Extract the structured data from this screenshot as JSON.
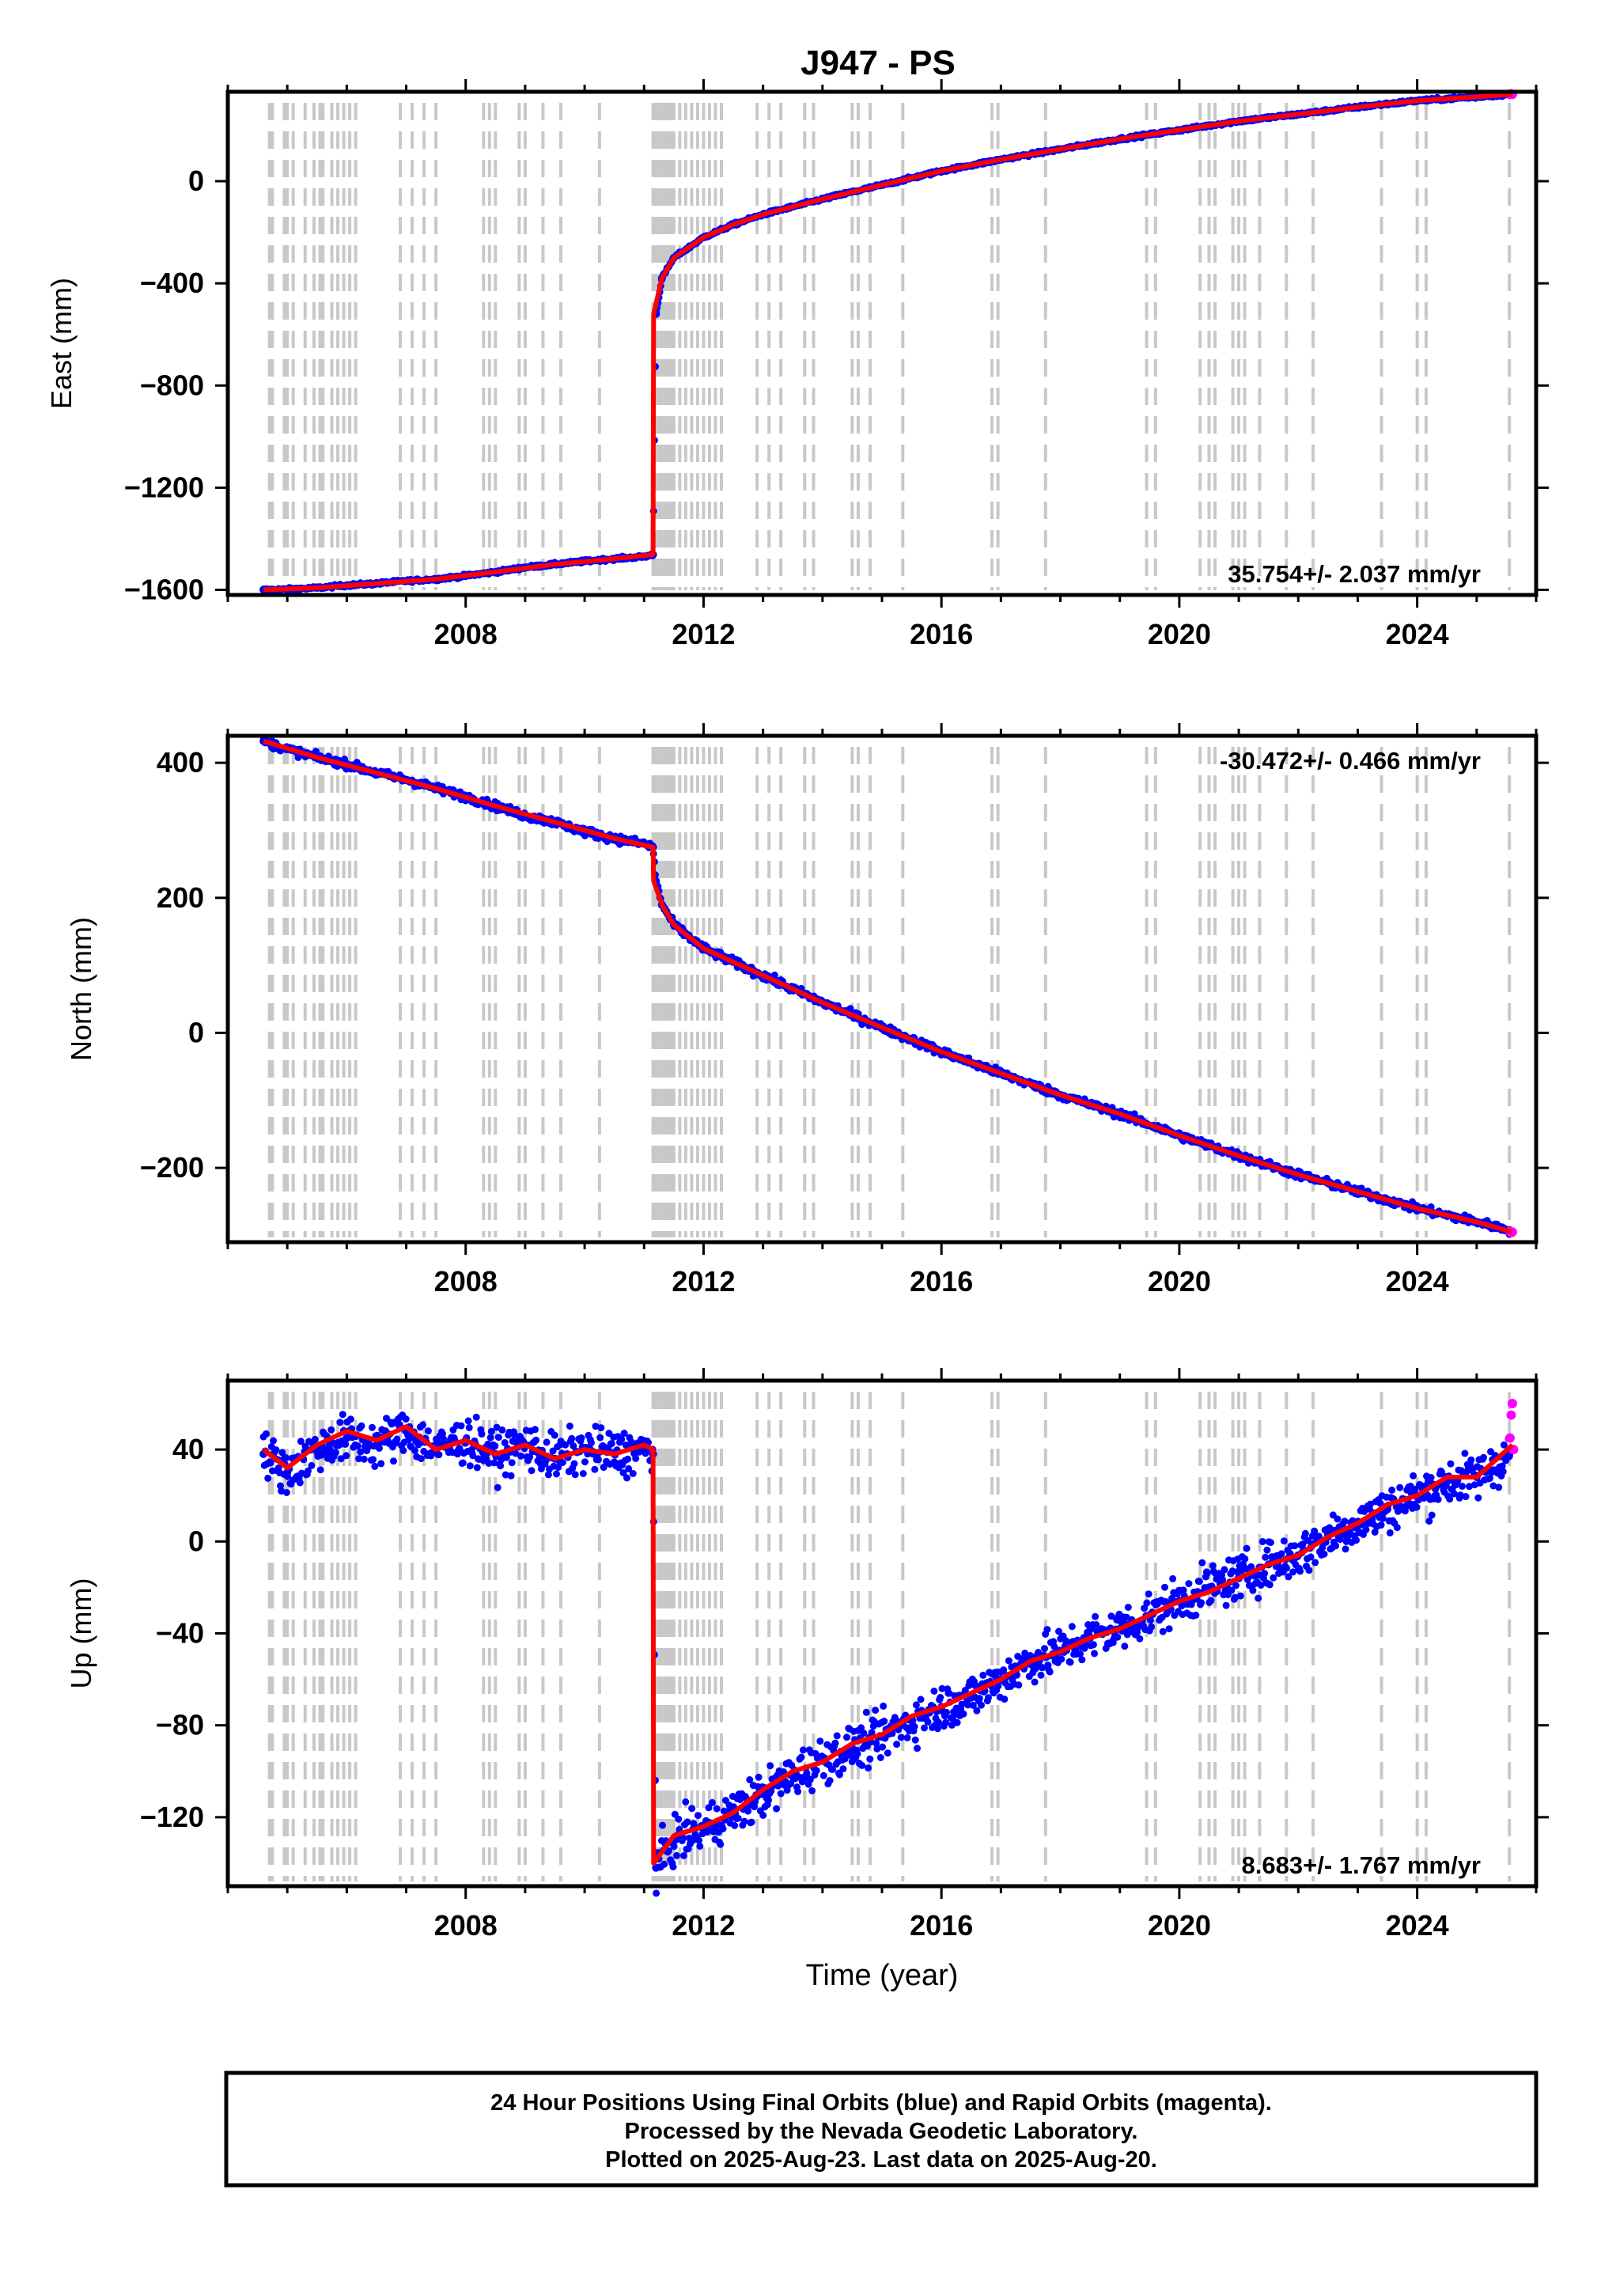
{
  "title": "J947 - PS",
  "colors": {
    "final_points": "#0000ff",
    "rapid_points": "#ff00ff",
    "model": "#ff0000",
    "event_lines": "#c8c8c8",
    "frame": "#000000"
  },
  "footer": {
    "line1": "24 Hour Positions Using Final Orbits (blue) and Rapid Orbits (magenta).",
    "line2": "Processed by the Nevada Geodetic Laboratory.",
    "line3": "Plotted on 2025-Aug-23. Last data on 2025-Aug-20."
  },
  "chart_data": [
    {
      "type": "scatter",
      "component": "East",
      "ylabel": "East (mm)",
      "xlabel": "",
      "xlim": [
        2004.0,
        2026.0
      ],
      "ylim": [
        -1620,
        350
      ],
      "xticks": [
        2008,
        2012,
        2016,
        2020,
        2024
      ],
      "yticks": [
        -1600,
        -1200,
        -800,
        -400,
        0
      ],
      "ytick_labels": [
        "−1600",
        "−1200",
        "−800",
        "−400",
        "0"
      ],
      "rate_label": "35.754+/- 2.037 mm/yr",
      "rate_position": "bottom-right",
      "series": [
        {
          "name": "Final Orbits (blue)",
          "x": [
            2004.6,
            2005.0,
            2005.5,
            2006.0,
            2006.5,
            2007.0,
            2007.5,
            2008.0,
            2008.5,
            2009.0,
            2009.5,
            2010.0,
            2010.5,
            2011.0,
            2011.15,
            2011.2,
            2011.3,
            2011.5,
            2012.0,
            2012.5,
            2013.0,
            2014.0,
            2015.0,
            2016.0,
            2017.0,
            2018.0,
            2019.0,
            2020.0,
            2021.0,
            2022.0,
            2023.0,
            2024.0,
            2025.0,
            2025.55
          ],
          "y": [
            -1600,
            -1598,
            -1592,
            -1582,
            -1575,
            -1565,
            -1558,
            -1545,
            -1530,
            -1512,
            -1500,
            -1488,
            -1478,
            -1470,
            -1462,
            -520,
            -380,
            -300,
            -220,
            -170,
            -130,
            -70,
            -15,
            40,
            85,
            125,
            165,
            200,
            235,
            262,
            290,
            315,
            330,
            340
          ]
        },
        {
          "name": "Rapid Orbits (magenta)",
          "x": [
            2025.56,
            2025.58,
            2025.6
          ],
          "y": [
            340,
            342,
            340
          ]
        },
        {
          "name": "Model",
          "x": [
            2004.6,
            2005.5,
            2006.5,
            2007.5,
            2008.5,
            2009.5,
            2010.5,
            2011.15,
            2011.16,
            2011.3,
            2011.5,
            2012.0,
            2012.5,
            2013.0,
            2014.0,
            2015.0,
            2016.0,
            2017.0,
            2018.0,
            2019.0,
            2020.0,
            2021.0,
            2022.0,
            2023.0,
            2024.0,
            2025.0,
            2025.6
          ],
          "y": [
            -1600,
            -1592,
            -1575,
            -1558,
            -1530,
            -1500,
            -1478,
            -1462,
            -520,
            -380,
            -300,
            -220,
            -170,
            -130,
            -70,
            -15,
            40,
            85,
            125,
            165,
            200,
            235,
            262,
            290,
            315,
            330,
            340
          ]
        }
      ]
    },
    {
      "type": "scatter",
      "component": "North",
      "ylabel": "North (mm)",
      "xlabel": "",
      "xlim": [
        2004.0,
        2026.0
      ],
      "ylim": [
        -310,
        440
      ],
      "xticks": [
        2008,
        2012,
        2016,
        2020,
        2024
      ],
      "yticks": [
        -200,
        0,
        200,
        400
      ],
      "ytick_labels": [
        "−200",
        "0",
        "200",
        "400"
      ],
      "rate_label": "-30.472+/- 0.466 mm/yr",
      "rate_position": "top-right",
      "series": [
        {
          "name": "Final Orbits (blue)",
          "x": [
            2004.6,
            2005.0,
            2005.5,
            2006.0,
            2006.5,
            2007.0,
            2007.5,
            2008.0,
            2008.5,
            2009.0,
            2009.5,
            2010.0,
            2010.5,
            2011.0,
            2011.15,
            2011.2,
            2011.3,
            2011.5,
            2012.0,
            2012.5,
            2013.0,
            2014.0,
            2015.0,
            2016.0,
            2017.0,
            2018.0,
            2019.0,
            2020.0,
            2021.0,
            2022.0,
            2023.0,
            2024.0,
            2025.0,
            2025.55
          ],
          "y": [
            432,
            420,
            408,
            398,
            385,
            375,
            362,
            350,
            336,
            322,
            312,
            298,
            288,
            280,
            275,
            225,
            190,
            160,
            125,
            105,
            85,
            45,
            8,
            -28,
            -60,
            -92,
            -120,
            -152,
            -182,
            -210,
            -235,
            -260,
            -280,
            -292
          ]
        },
        {
          "name": "Rapid Orbits (magenta)",
          "x": [
            2025.56,
            2025.58,
            2025.6
          ],
          "y": [
            -294,
            -296,
            -295
          ]
        },
        {
          "name": "Model",
          "x": [
            2004.6,
            2005.5,
            2006.5,
            2007.5,
            2008.5,
            2009.5,
            2010.5,
            2011.15,
            2011.16,
            2011.3,
            2011.5,
            2012.0,
            2012.5,
            2013.0,
            2014.0,
            2015.0,
            2016.0,
            2017.0,
            2018.0,
            2019.0,
            2020.0,
            2021.0,
            2022.0,
            2023.0,
            2024.0,
            2025.0,
            2025.6
          ],
          "y": [
            432,
            408,
            385,
            362,
            336,
            312,
            288,
            275,
            225,
            190,
            160,
            125,
            105,
            85,
            45,
            8,
            -28,
            -60,
            -92,
            -120,
            -152,
            -182,
            -210,
            -235,
            -260,
            -280,
            -295
          ]
        }
      ]
    },
    {
      "type": "scatter",
      "component": "Up",
      "ylabel": "Up (mm)",
      "xlabel": "Time (year)",
      "xlim": [
        2004.0,
        2026.0
      ],
      "ylim": [
        -150,
        70
      ],
      "xticks": [
        2008,
        2012,
        2016,
        2020,
        2024
      ],
      "yticks": [
        -120,
        -80,
        -40,
        0,
        40
      ],
      "ytick_labels": [
        "−120",
        "−80",
        "−40",
        "0",
        "40"
      ],
      "rate_label": "8.683+/- 1.767 mm/yr",
      "rate_position": "bottom-right",
      "series": [
        {
          "name": "Final Orbits (blue)",
          "x": [
            2004.6,
            2005.0,
            2005.5,
            2006.0,
            2006.5,
            2007.0,
            2007.5,
            2008.0,
            2008.5,
            2009.0,
            2009.5,
            2010.0,
            2010.5,
            2011.0,
            2011.15,
            2011.2,
            2011.5,
            2012.0,
            2012.5,
            2013.0,
            2013.5,
            2014.0,
            2014.5,
            2015.0,
            2015.5,
            2016.0,
            2016.5,
            2017.0,
            2017.5,
            2018.0,
            2018.5,
            2019.0,
            2019.5,
            2020.0,
            2020.5,
            2021.0,
            2021.5,
            2022.0,
            2022.5,
            2023.0,
            2023.5,
            2024.0,
            2024.5,
            2025.0,
            2025.55
          ],
          "y": [
            38,
            30,
            40,
            45,
            42,
            48,
            40,
            44,
            38,
            42,
            36,
            40,
            38,
            40,
            38,
            -142,
            -130,
            -125,
            -118,
            -110,
            -102,
            -95,
            -90,
            -85,
            -78,
            -72,
            -68,
            -60,
            -52,
            -48,
            -42,
            -38,
            -32,
            -26,
            -20,
            -16,
            -10,
            -6,
            2,
            8,
            14,
            20,
            26,
            28,
            38
          ]
        },
        {
          "name": "Rapid Orbits (magenta)",
          "x": [
            2025.56,
            2025.58,
            2025.6,
            2025.62
          ],
          "y": [
            45,
            55,
            60,
            40
          ]
        },
        {
          "name": "Model",
          "x": [
            2004.6,
            2005.0,
            2005.5,
            2006.0,
            2006.5,
            2007.0,
            2007.5,
            2008.0,
            2008.5,
            2009.0,
            2009.5,
            2010.0,
            2010.5,
            2011.0,
            2011.15,
            2011.16,
            2011.5,
            2012.0,
            2012.5,
            2013.0,
            2013.5,
            2014.0,
            2014.5,
            2015.0,
            2015.5,
            2016.0,
            2016.5,
            2017.0,
            2017.5,
            2018.0,
            2018.5,
            2019.0,
            2019.5,
            2020.0,
            2020.5,
            2021.0,
            2021.5,
            2022.0,
            2022.5,
            2023.0,
            2023.5,
            2024.0,
            2024.5,
            2025.0,
            2025.6
          ],
          "y": [
            40,
            32,
            42,
            48,
            44,
            50,
            40,
            44,
            38,
            42,
            36,
            40,
            38,
            42,
            40,
            -140,
            -128,
            -124,
            -118,
            -108,
            -100,
            -96,
            -88,
            -84,
            -76,
            -72,
            -66,
            -60,
            -52,
            -48,
            -42,
            -38,
            -32,
            -26,
            -22,
            -16,
            -10,
            -6,
            2,
            8,
            16,
            20,
            28,
            28,
            42
          ]
        }
      ]
    }
  ],
  "event_lines_x": [
    2004.7,
    2004.75,
    2004.95,
    2005.0,
    2005.1,
    2005.3,
    2005.45,
    2005.55,
    2005.6,
    2005.75,
    2005.85,
    2005.95,
    2006.05,
    2006.15,
    2006.9,
    2007.1,
    2007.3,
    2007.5,
    2008.3,
    2008.4,
    2008.5,
    2008.9,
    2009.0,
    2009.3,
    2009.6,
    2010.25,
    2011.15,
    2011.2,
    2011.25,
    2011.3,
    2011.35,
    2011.4,
    2011.45,
    2011.5,
    2011.6,
    2011.7,
    2011.8,
    2011.9,
    2012.0,
    2012.1,
    2012.2,
    2012.3,
    2012.9,
    2013.1,
    2013.3,
    2013.7,
    2013.85,
    2014.5,
    2014.6,
    2014.8,
    2015.35,
    2016.85,
    2016.95,
    2017.75,
    2019.45,
    2019.6,
    2020.35,
    2020.5,
    2020.6,
    2020.9,
    2021.0,
    2021.1,
    2021.35,
    2021.8,
    2022.25,
    2023.4,
    2024.0,
    2024.15,
    2025.55
  ]
}
